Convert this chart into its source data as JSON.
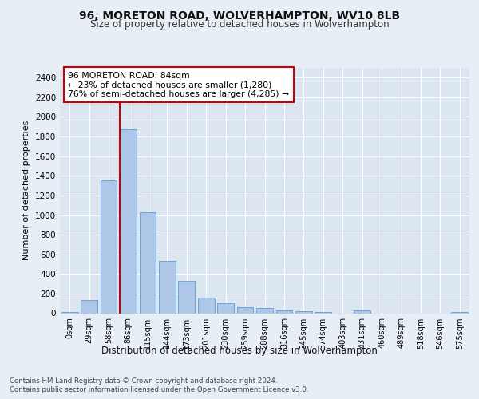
{
  "title1": "96, MORETON ROAD, WOLVERHAMPTON, WV10 8LB",
  "title2": "Size of property relative to detached houses in Wolverhampton",
  "xlabel": "Distribution of detached houses by size in Wolverhampton",
  "ylabel": "Number of detached properties",
  "bar_labels": [
    "0sqm",
    "29sqm",
    "58sqm",
    "86sqm",
    "115sqm",
    "144sqm",
    "173sqm",
    "201sqm",
    "230sqm",
    "259sqm",
    "288sqm",
    "316sqm",
    "345sqm",
    "374sqm",
    "403sqm",
    "431sqm",
    "460sqm",
    "489sqm",
    "518sqm",
    "546sqm",
    "575sqm"
  ],
  "bar_values": [
    15,
    135,
    1355,
    1875,
    1030,
    530,
    330,
    160,
    105,
    60,
    55,
    30,
    20,
    15,
    0,
    25,
    0,
    0,
    0,
    0,
    15
  ],
  "bar_color": "#aec6e8",
  "bar_edge_color": "#5a9fd4",
  "ylim": [
    0,
    2500
  ],
  "yticks": [
    0,
    200,
    400,
    600,
    800,
    1000,
    1200,
    1400,
    1600,
    1800,
    2000,
    2200,
    2400
  ],
  "annotation_text": "96 MORETON ROAD: 84sqm\n← 23% of detached houses are smaller (1,280)\n76% of semi-detached houses are larger (4,285) →",
  "annotation_box_color": "#ffffff",
  "annotation_box_edge": "#cc0000",
  "property_line_color": "#cc0000",
  "footer_line1": "Contains HM Land Registry data © Crown copyright and database right 2024.",
  "footer_line2": "Contains public sector information licensed under the Open Government Licence v3.0.",
  "bg_color": "#e8eef5",
  "plot_bg_color": "#dce6f0"
}
